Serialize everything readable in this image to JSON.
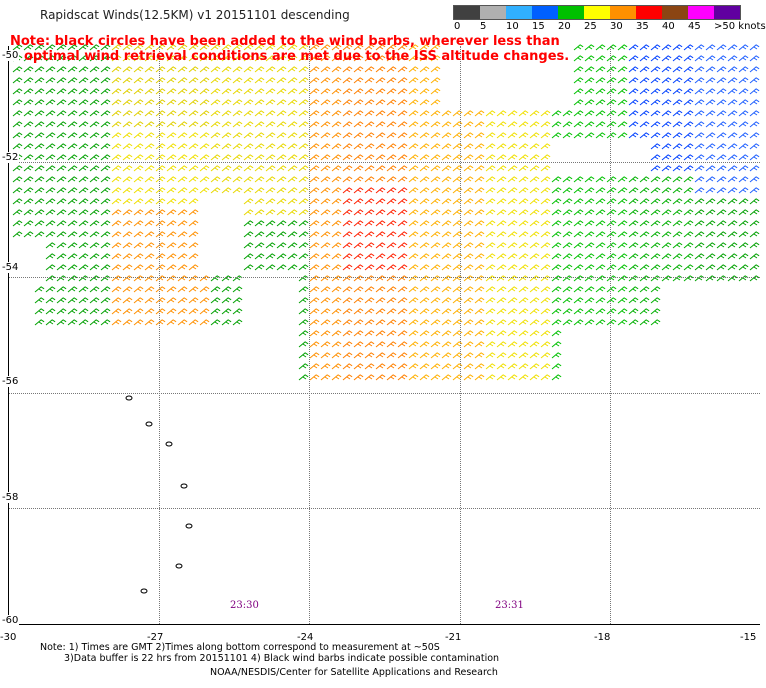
{
  "title": "Rapidscat Winds(12.5KM) v1 20151101 descending",
  "note_line1": "Note: black circles have been added to the wind barbs, wherever less than",
  "note_line2": "optimal wind retrieval conditions are met due to the ISS altitude changes.",
  "colorbar": {
    "labels": [
      "0",
      "5",
      "10",
      "15",
      "20",
      "25",
      "30",
      "35",
      "40",
      "45",
      ">50 knots"
    ],
    "colors": [
      "#404040",
      "#b0b0b0",
      "#30b0ff",
      "#0060ff",
      "#00c000",
      "#ffff00",
      "#ff9000",
      "#ff0000",
      "#8b4513",
      "#ff00ff",
      "#6000a0"
    ]
  },
  "lat_labels": [
    "-50",
    "-52",
    "-54",
    "-56",
    "-58",
    "-60"
  ],
  "lon_labels": [
    "-30",
    "-27",
    "-24",
    "-21",
    "-18",
    "-15"
  ],
  "times": [
    "23:30",
    "23:31"
  ],
  "footer_line1": "Note: 1) Times are GMT 2)Times along bottom correspond to measurement at ~50S",
  "footer_line2": "3)Data buffer is 22 hrs from 20151101 4) Black wind barbs indicate possible contamination",
  "credit": "NOAA/NESDIS/Center for Satellite Applications and Research",
  "wind_field": {
    "regions": [
      {
        "color": "#00a000",
        "area": "west strip near -50 to -53"
      },
      {
        "color": "#f0e000",
        "area": "west-central -50 to -55"
      },
      {
        "color": "#ff8000",
        "area": "central -50 to -55"
      },
      {
        "color": "#ff0000",
        "area": "central core near -52 to -54"
      },
      {
        "color": "#0040ff",
        "area": "east -50 to -53"
      },
      {
        "color": "#00c000",
        "area": "east -52 to -55"
      }
    ]
  }
}
